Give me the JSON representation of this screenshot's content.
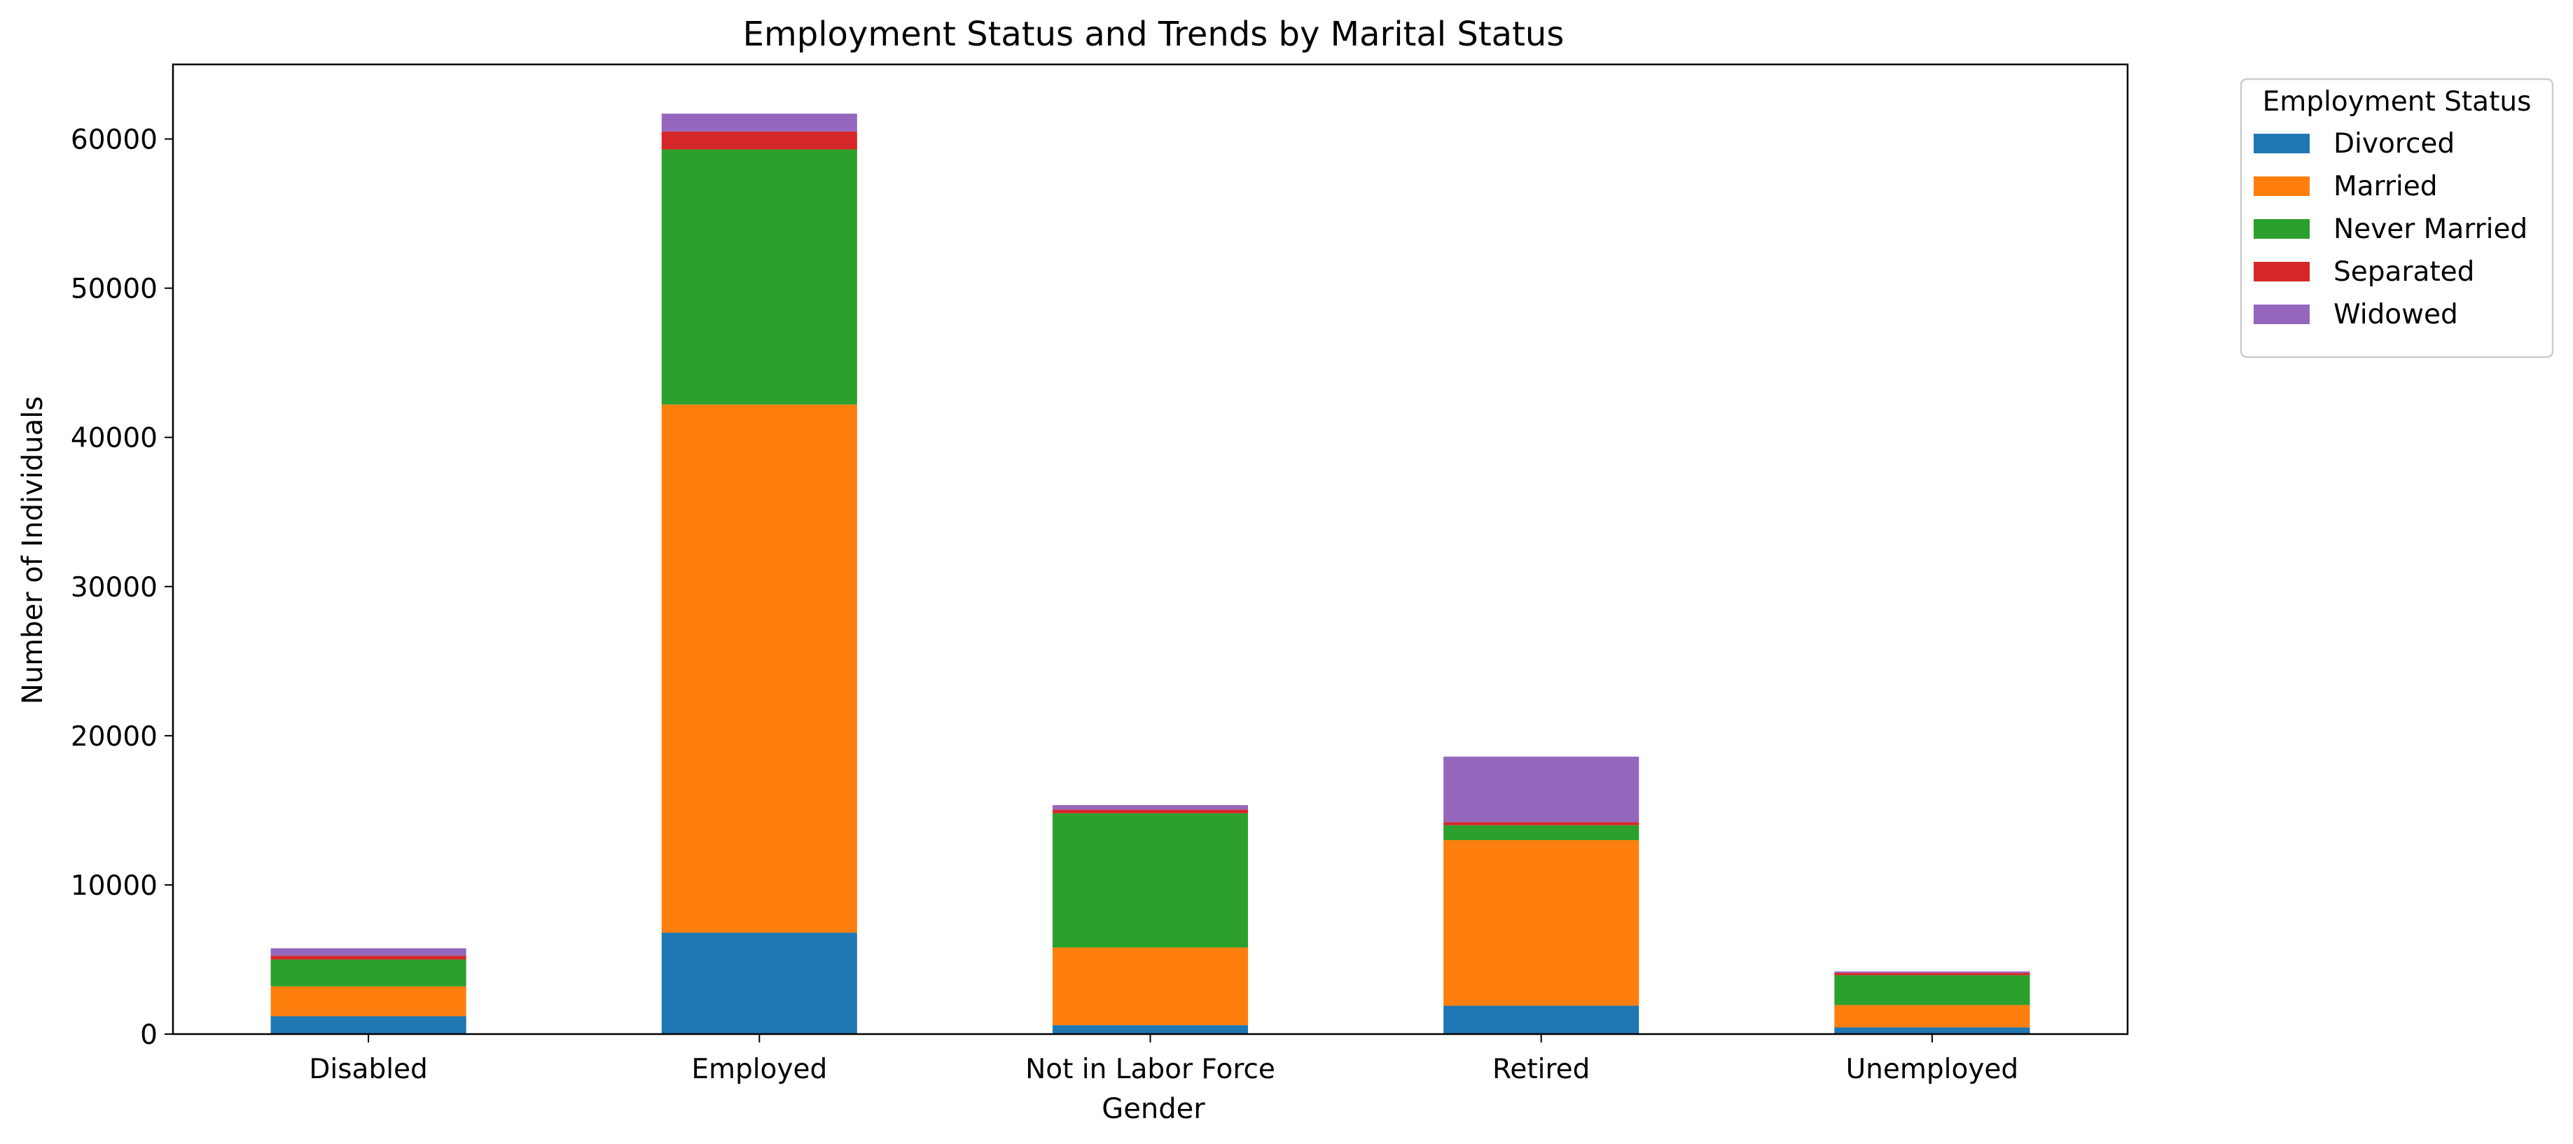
{
  "chart_data": {
    "type": "bar",
    "stacked": true,
    "title": "Employment Status and Trends by Marital Status",
    "xlabel": "Gender",
    "ylabel": "Number of Individuals",
    "ylim": [
      0,
      65000
    ],
    "yticks": [
      0,
      10000,
      20000,
      30000,
      40000,
      50000,
      60000
    ],
    "grid": false,
    "legend": {
      "title": "Employment Status",
      "placement": "outside-top-right"
    },
    "categories": [
      "Disabled",
      "Employed",
      "Not in Labor Force",
      "Retired",
      "Unemployed"
    ],
    "series": [
      {
        "name": "Divorced",
        "color": "#1f77b4",
        "values": [
          1200,
          6800,
          600,
          1900,
          450
        ]
      },
      {
        "name": "Married",
        "color": "#ff7f0e",
        "values": [
          2000,
          35400,
          5200,
          11100,
          1500
        ]
      },
      {
        "name": "Never Married",
        "color": "#2ca02c",
        "values": [
          1800,
          17100,
          9000,
          1000,
          2000
        ]
      },
      {
        "name": "Separated",
        "color": "#d62728",
        "values": [
          250,
          1200,
          250,
          200,
          150
        ]
      },
      {
        "name": "Widowed",
        "color": "#9467bd",
        "values": [
          500,
          1200,
          300,
          4400,
          100
        ]
      }
    ]
  }
}
